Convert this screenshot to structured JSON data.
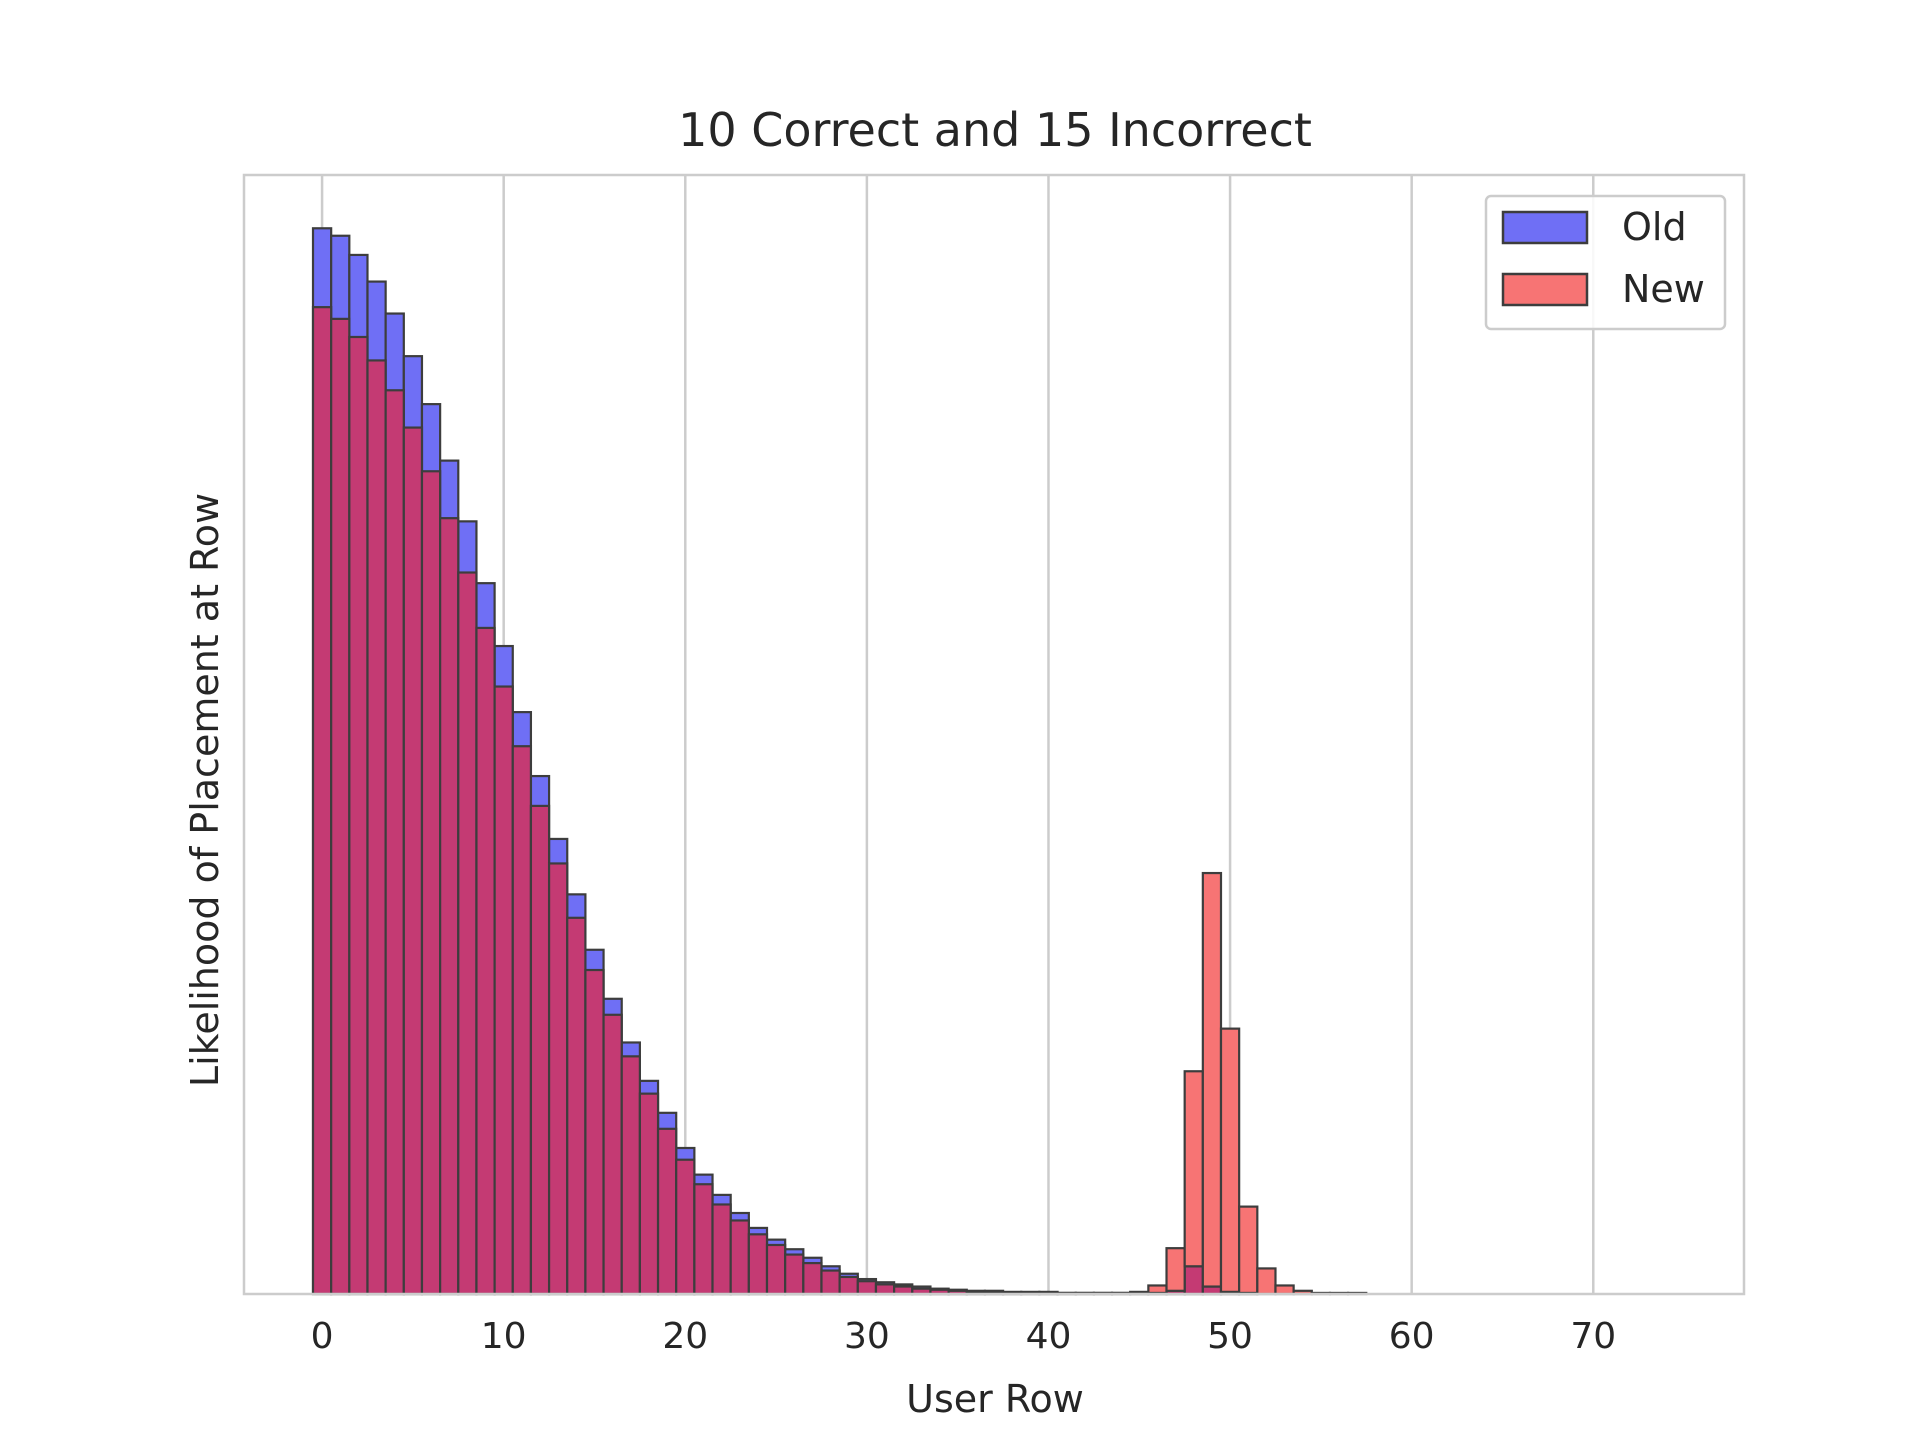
{
  "chart_data": {
    "type": "bar",
    "title": "10 Correct and 15 Incorrect",
    "xlabel": "User Row",
    "ylabel": "Likelihood of Placement at Row",
    "xlim": [
      -4.3,
      78.3
    ],
    "xticks": [
      0,
      10,
      20,
      30,
      40,
      50,
      60,
      70
    ],
    "ylim": [
      0,
      1.05
    ],
    "yticks_visible": false,
    "grid": "vertical",
    "legend": "top-right",
    "bar_width": 1,
    "x_start": -0.5,
    "colors": {
      "Old": "#6f6ff5",
      "New": "#f77474",
      "overlap": "#c43a73",
      "edge": "#3d3d3d",
      "grid": "#cccccc",
      "spine": "#cccccc"
    },
    "series": [
      {
        "name": "Old",
        "values": [
          1.0,
          0.993,
          0.975,
          0.95,
          0.92,
          0.88,
          0.835,
          0.782,
          0.725,
          0.667,
          0.608,
          0.546,
          0.486,
          0.427,
          0.375,
          0.323,
          0.277,
          0.236,
          0.2,
          0.17,
          0.137,
          0.112,
          0.093,
          0.076,
          0.062,
          0.051,
          0.042,
          0.034,
          0.026,
          0.019,
          0.014,
          0.011,
          0.009,
          0.007,
          0.005,
          0.004,
          0.003,
          0.003,
          0.002,
          0.002,
          0.002,
          0.001,
          0.001,
          0.001,
          0.001,
          0.001,
          0.001,
          0.003,
          0.026,
          0.007,
          0.002,
          0.001,
          0.0,
          0.0,
          0.0,
          0.0,
          0.0,
          0.0,
          0.0,
          0.0,
          0.0,
          0.0,
          0.0,
          0.0,
          0.0,
          0.0,
          0.0,
          0.0,
          0.0,
          0.0,
          0.0,
          0.0,
          0.0,
          0.0,
          0.0
        ]
      },
      {
        "name": "New",
        "values": [
          0.926,
          0.915,
          0.898,
          0.876,
          0.848,
          0.813,
          0.772,
          0.728,
          0.677,
          0.625,
          0.57,
          0.514,
          0.458,
          0.404,
          0.353,
          0.304,
          0.262,
          0.223,
          0.188,
          0.155,
          0.126,
          0.103,
          0.084,
          0.069,
          0.056,
          0.046,
          0.037,
          0.029,
          0.022,
          0.016,
          0.012,
          0.009,
          0.007,
          0.005,
          0.004,
          0.003,
          0.002,
          0.002,
          0.001,
          0.001,
          0.001,
          0.001,
          0.001,
          0.001,
          0.001,
          0.002,
          0.008,
          0.043,
          0.209,
          0.395,
          0.249,
          0.082,
          0.024,
          0.008,
          0.003,
          0.001,
          0.001,
          0.001,
          0.0,
          0.0,
          0.0,
          0.0,
          0.0,
          0.0,
          0.0,
          0.0,
          0.0,
          0.0,
          0.0,
          0.0,
          0.0,
          0.0,
          0.0,
          0.0,
          0.0
        ]
      }
    ]
  }
}
